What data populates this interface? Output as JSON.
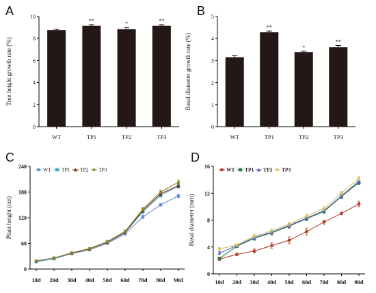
{
  "chart_data": [
    {
      "panel": "A",
      "type": "bar",
      "ylabel": "Tree height growth rate (%)",
      "ylim": [
        0,
        10
      ],
      "yticks": [
        0,
        2,
        4,
        6,
        8,
        10
      ],
      "categories": [
        "WT",
        "TP1",
        "TP2",
        "TP3"
      ],
      "values": [
        8.75,
        9.15,
        8.85,
        9.15
      ],
      "errors": [
        0.08,
        0.1,
        0.15,
        0.1
      ],
      "significance": [
        "",
        "**",
        "*",
        "**"
      ],
      "bar_color": "#231815"
    },
    {
      "panel": "B",
      "type": "bar",
      "ylabel": "Basal diameter growth rate (%)",
      "ylim": [
        0,
        5
      ],
      "yticks": [
        0,
        1,
        2,
        3,
        4,
        5
      ],
      "categories": [
        "WT",
        "TP1",
        "TP2",
        "TP3"
      ],
      "values": [
        3.15,
        4.28,
        3.38,
        3.6
      ],
      "errors": [
        0.07,
        0.06,
        0.04,
        0.08
      ],
      "significance": [
        "",
        "**",
        "*",
        "**"
      ],
      "bar_color": "#231815"
    },
    {
      "panel": "C",
      "type": "line",
      "ylabel": "Plant height (cm)",
      "ylim": [
        0,
        240
      ],
      "yticks": [
        0,
        60,
        120,
        180,
        240
      ],
      "x": [
        "10d",
        "20d",
        "30d",
        "40d",
        "50d",
        "60d",
        "70d",
        "80d",
        "90d"
      ],
      "legend_position": "top-left",
      "series": [
        {
          "name": "WT",
          "color": "#6b8cd8",
          "marker": "circle",
          "values": [
            17,
            24,
            36,
            45,
            60,
            82,
            122,
            150,
            171
          ],
          "errors": [
            2,
            2,
            2,
            2,
            3,
            3,
            4,
            3,
            4
          ]
        },
        {
          "name": "TP1",
          "color": "#3fb0c4",
          "marker": "square",
          "values": [
            18,
            25,
            37,
            47,
            62,
            85,
            134,
            172,
            194
          ],
          "errors": [
            2,
            2,
            2,
            2,
            3,
            3,
            4,
            4,
            5
          ]
        },
        {
          "name": "TP2",
          "color": "#8b2a1e",
          "marker": "triangle",
          "values": [
            19,
            26,
            37,
            47,
            63,
            86,
            137,
            176,
            195
          ],
          "errors": [
            2,
            2,
            2,
            2,
            3,
            3,
            4,
            4,
            5
          ]
        },
        {
          "name": "TP3",
          "color": "#8a8a20",
          "marker": "diamond",
          "values": [
            19,
            26,
            38,
            48,
            64,
            88,
            140,
            180,
            203
          ],
          "errors": [
            2,
            2,
            2,
            2,
            3,
            3,
            4,
            4,
            5
          ]
        }
      ]
    },
    {
      "panel": "D",
      "type": "line",
      "ylabel": "Basal diameter (mm)",
      "ylim": [
        0,
        16
      ],
      "yticks": [
        0,
        4,
        8,
        12,
        16
      ],
      "x": [
        "10d",
        "20d",
        "30d",
        "40d",
        "50d",
        "60d",
        "70d",
        "80d",
        "90d"
      ],
      "legend_position": "top-left",
      "series": [
        {
          "name": "WT",
          "color": "#b5402c",
          "marker": "circle",
          "values": [
            2.2,
            2.9,
            3.4,
            4.2,
            5.0,
            6.3,
            7.7,
            9.0,
            10.4
          ],
          "errors": [
            0.2,
            0.2,
            0.3,
            0.4,
            0.5,
            0.5,
            0.3,
            0.2,
            0.4
          ]
        },
        {
          "name": "TP1",
          "color": "#2e7d32",
          "marker": "square",
          "values": [
            2.3,
            4.1,
            5.3,
            6.1,
            7.1,
            8.2,
            9.3,
            11.5,
            13.6
          ],
          "errors": [
            0.2,
            0.2,
            0.3,
            0.3,
            0.3,
            0.3,
            0.3,
            0.3,
            0.3
          ]
        },
        {
          "name": "TP2",
          "color": "#5560c8",
          "marker": "triangle",
          "values": [
            3.1,
            4.2,
            5.4,
            6.2,
            7.2,
            8.3,
            9.4,
            11.6,
            13.8
          ],
          "errors": [
            0.2,
            0.2,
            0.3,
            0.3,
            0.3,
            0.3,
            0.3,
            0.3,
            0.3
          ]
        },
        {
          "name": "TP3",
          "color": "#d8c060",
          "marker": "diamond",
          "values": [
            3.7,
            4.3,
            5.6,
            6.4,
            7.4,
            8.6,
            9.7,
            12.0,
            14.2
          ],
          "errors": [
            0.2,
            0.2,
            0.3,
            0.3,
            0.3,
            0.3,
            0.3,
            0.3,
            0.3
          ]
        }
      ]
    }
  ]
}
